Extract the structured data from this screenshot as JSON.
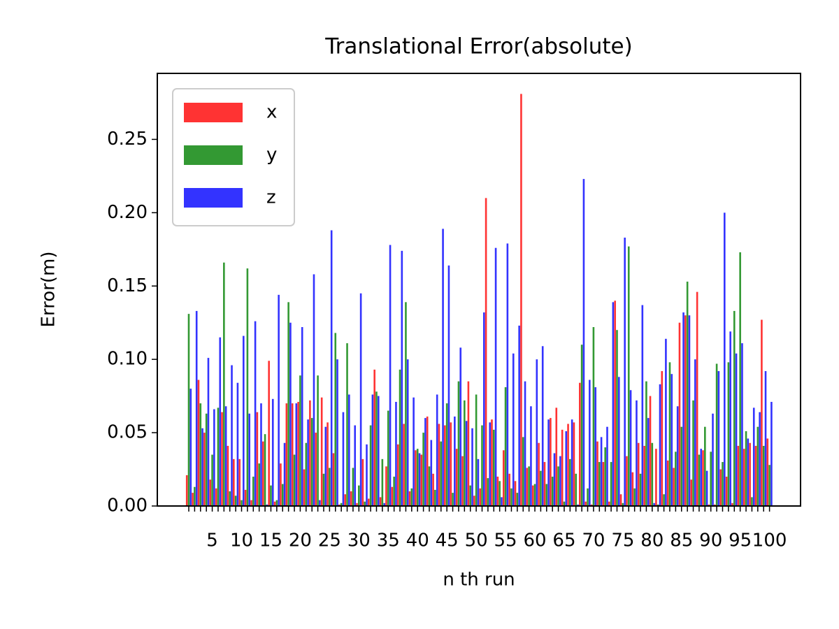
{
  "chart_data": {
    "type": "bar",
    "title": "Translational Error(absolute)",
    "x_label": "n th run",
    "y_label": "Error(m)",
    "categories": [
      null,
      null,
      null,
      null,
      "5",
      null,
      null,
      null,
      null,
      "10",
      null,
      null,
      null,
      null,
      "15",
      null,
      null,
      null,
      null,
      "20",
      null,
      null,
      null,
      null,
      "25",
      null,
      null,
      null,
      null,
      "30",
      null,
      null,
      null,
      null,
      "35",
      null,
      null,
      null,
      null,
      "40",
      null,
      null,
      null,
      null,
      "45",
      null,
      null,
      null,
      null,
      "50",
      null,
      null,
      null,
      null,
      "55",
      null,
      null,
      null,
      null,
      "60",
      null,
      null,
      null,
      null,
      "65",
      null,
      null,
      null,
      null,
      "70",
      null,
      null,
      null,
      null,
      "75",
      null,
      null,
      null,
      null,
      "80",
      null,
      null,
      null,
      null,
      "85",
      null,
      null,
      null,
      null,
      "90",
      null,
      null,
      null,
      null,
      "95",
      null,
      null,
      null,
      null,
      "100"
    ],
    "series": [
      {
        "name": "x",
        "color": "#ff3333",
        "values": [
          0.021,
          0.009,
          0.086,
          0.05,
          0.018,
          0.012,
          0.064,
          0.041,
          0.032,
          0.032,
          0.011,
          0.004,
          0.064,
          0.044,
          0.099,
          0.003,
          0.029,
          0.07,
          0.07,
          0.071,
          0.025,
          0.072,
          0.05,
          0.074,
          0.057,
          0.036,
          0.001,
          0.008,
          0.01,
          0.002,
          0.032,
          0.005,
          0.093,
          0.006,
          0.027,
          0.013,
          0.042,
          0.056,
          0.01,
          0.038,
          0.035,
          0.061,
          0.022,
          0.056,
          0.055,
          0.057,
          0.039,
          0.034,
          0.085,
          0.007,
          0.012,
          0.21,
          0.059,
          0.02,
          0.038,
          0.022,
          0.017,
          0.281,
          0.026,
          0.014,
          0.043,
          0.03,
          0.06,
          0.067,
          0.052,
          0.056,
          0.057,
          0.084,
          0.003,
          0.001,
          0.044,
          0.03,
          0.003,
          0.14,
          0.008,
          0.034,
          0.023,
          0.043,
          0.041,
          0.075,
          0.039,
          0.092,
          0.031,
          0.026,
          0.125,
          0.13,
          0.018,
          0.146,
          0.038,
          0.001,
          0.001,
          0.025,
          0.02,
          0.002,
          0.041,
          0.039,
          0.043,
          0.041,
          0.127,
          0.046
        ]
      },
      {
        "name": "y",
        "color": "#339933",
        "values": [
          0.131,
          0.013,
          0.07,
          0.063,
          0.035,
          0.067,
          0.166,
          0.01,
          0.007,
          0.004,
          0.162,
          0.02,
          0.029,
          0.049,
          0.014,
          0.004,
          0.015,
          0.139,
          0.035,
          0.089,
          0.043,
          0.06,
          0.089,
          0.022,
          0.026,
          0.118,
          0.002,
          0.111,
          0.026,
          0.014,
          0.003,
          0.055,
          0.078,
          0.032,
          0.065,
          0.02,
          0.093,
          0.139,
          0.012,
          0.039,
          0.05,
          0.027,
          0.011,
          0.044,
          0.07,
          0.009,
          0.085,
          0.072,
          0.014,
          0.076,
          0.055,
          0.019,
          0.052,
          0.017,
          0.081,
          0.012,
          0.009,
          0.047,
          0.027,
          0.015,
          0.024,
          0.015,
          0.02,
          0.027,
          0.003,
          0.032,
          0.022,
          0.11,
          0.012,
          0.122,
          0.03,
          0.04,
          0.03,
          0.12,
          0.002,
          0.177,
          0.012,
          0.022,
          0.085,
          0.043,
          0.001,
          0.008,
          0.098,
          0.037,
          0.054,
          0.153,
          0.072,
          0.035,
          0.054,
          0.037,
          0.097,
          0.03,
          0.098,
          0.133,
          0.173,
          0.051,
          0.006,
          0.054,
          0.041,
          0.028
        ]
      },
      {
        "name": "z",
        "color": "#3333ff",
        "values": [
          0.08,
          0.133,
          0.053,
          0.101,
          0.066,
          0.115,
          0.068,
          0.096,
          0.084,
          0.116,
          0.063,
          0.126,
          0.07,
          0.001,
          0.073,
          0.144,
          0.043,
          0.125,
          0.07,
          0.122,
          0.059,
          0.158,
          0.004,
          0.054,
          0.188,
          0.1,
          0.064,
          0.076,
          0.055,
          0.145,
          0.042,
          0.076,
          0.075,
          0.002,
          0.178,
          0.071,
          0.174,
          0.1,
          0.074,
          0.036,
          0.06,
          0.045,
          0.076,
          0.189,
          0.164,
          0.061,
          0.108,
          0.058,
          0.053,
          0.032,
          0.132,
          0.057,
          0.176,
          0.006,
          0.179,
          0.104,
          0.123,
          0.085,
          0.068,
          0.1,
          0.109,
          0.059,
          0.036,
          0.034,
          0.051,
          0.059,
          0.001,
          0.223,
          0.086,
          0.081,
          0.047,
          0.054,
          0.139,
          0.088,
          0.183,
          0.079,
          0.072,
          0.137,
          0.06,
          0.002,
          0.083,
          0.114,
          0.09,
          0.068,
          0.132,
          0.13,
          0.1,
          0.039,
          0.024,
          0.063,
          0.092,
          0.2,
          0.119,
          0.104,
          0.111,
          0.046,
          0.067,
          0.064,
          0.092,
          0.071
        ]
      }
    ],
    "ylim": [
      0,
      0.295
    ],
    "yticks": [
      {
        "value": 0,
        "label": "0.00"
      },
      {
        "value": 0.05,
        "label": "0.05"
      },
      {
        "value": 0.1,
        "label": "0.10"
      },
      {
        "value": 0.15,
        "label": "0.15"
      },
      {
        "value": 0.2,
        "label": "0.20"
      },
      {
        "value": 0.25,
        "label": "0.25"
      }
    ],
    "legend": "upper left",
    "grid": false
  }
}
